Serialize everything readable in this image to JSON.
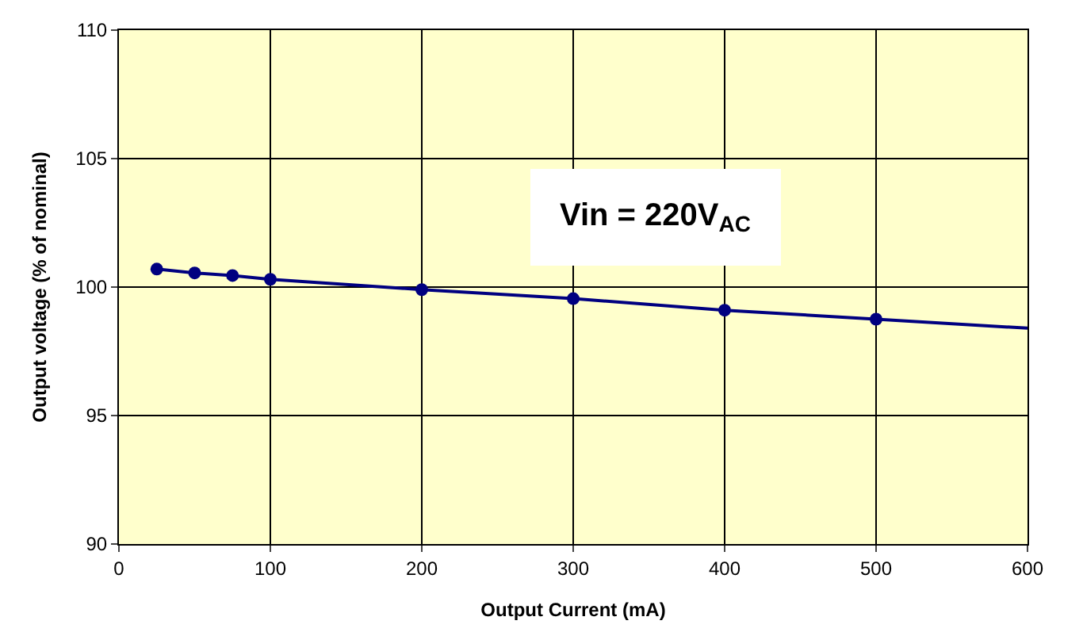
{
  "chart_data": {
    "type": "line",
    "xlabel": "Output Current (mA)",
    "ylabel": "Output voltage (% of nominal)",
    "annotations": [
      "Vin = 220V$_{AC}$"
    ],
    "series": [
      {
        "color": "#000080",
        "x": [
          25,
          50,
          75,
          100,
          200,
          300,
          400,
          500
        ],
        "values": [
          100.7,
          100.55,
          100.45,
          100.3,
          99.9,
          99.55,
          99.1,
          98.75
        ],
        "marker": "circle"
      },
      {
        "color": "#000080",
        "x": [
          500,
          600
        ],
        "values": [
          98.75,
          98.4
        ],
        "marker": "none"
      }
    ],
    "xlim": [
      0,
      600
    ],
    "xticks": [
      0,
      100,
      200,
      300,
      400,
      500,
      600
    ],
    "ylim": [
      90,
      110
    ],
    "yticks": [
      90,
      95,
      100,
      105,
      110
    ],
    "grid": true,
    "line_style": "solid"
  }
}
